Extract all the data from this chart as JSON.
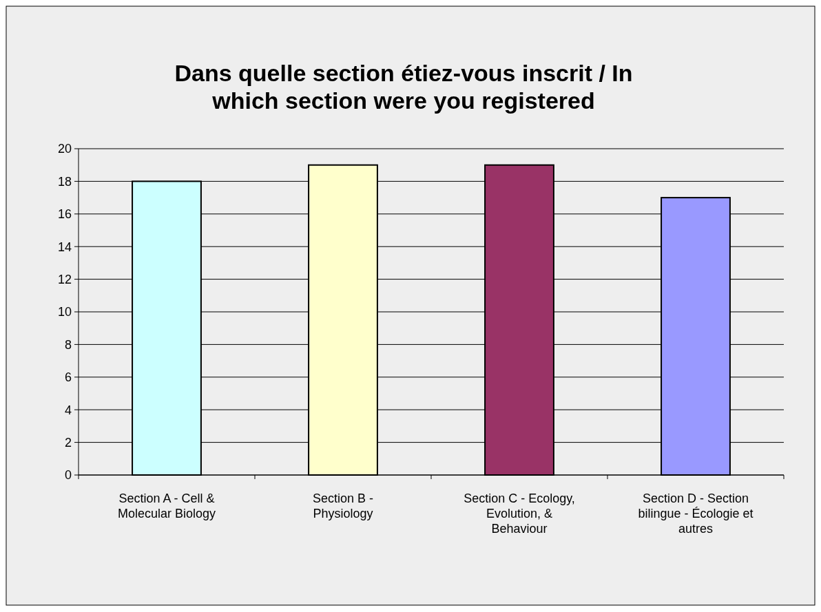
{
  "chart_data": {
    "type": "bar",
    "title": "Dans quelle section étiez-vous inscrit / In which section were you registered",
    "categories": [
      "Section A - Cell & Molecular Biology",
      "Section B - Physiology",
      "Section C - Ecology, Evolution, & Behaviour",
      "Section D - Section bilingue - Écologie et autres"
    ],
    "values": [
      18,
      19,
      19,
      17
    ],
    "colors": [
      "#ccffff",
      "#ffffcc",
      "#993366",
      "#9999ff"
    ],
    "ylim": [
      0,
      20
    ],
    "yticks": [
      0,
      2,
      4,
      6,
      8,
      10,
      12,
      14,
      16,
      18,
      20
    ],
    "grid": "y"
  }
}
